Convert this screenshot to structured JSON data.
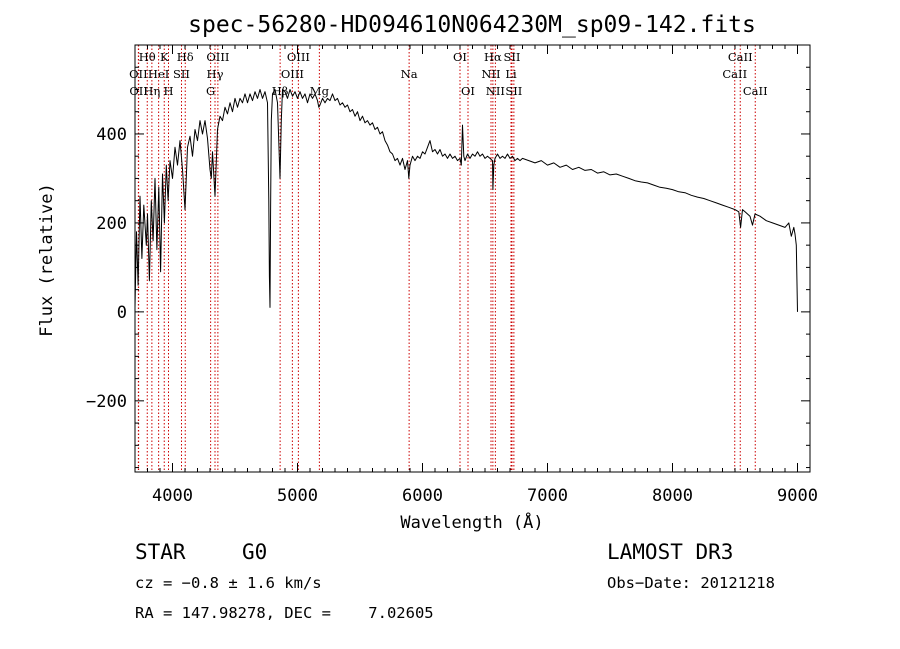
{
  "chart_data": {
    "type": "line",
    "title": "spec-56280-HD094610N064230M_sp09-142.fits",
    "xlabel": "Wavelength (Å)",
    "ylabel": "Flux (relative)",
    "xlim": [
      3700,
      9100
    ],
    "ylim": [
      -360,
      600
    ],
    "xticks": [
      4000,
      5000,
      6000,
      7000,
      8000,
      9000
    ],
    "xtick_labels": [
      "4000",
      "5000",
      "6000",
      "7000",
      "8000",
      "9000"
    ],
    "yticks": [
      -200,
      0,
      200,
      400
    ],
    "ytick_labels": [
      "−200",
      "0",
      "200",
      "400"
    ],
    "series": [
      {
        "name": "flux",
        "points": [
          [
            3700,
            10
          ],
          [
            3712,
            180
          ],
          [
            3725,
            60
          ],
          [
            3740,
            260
          ],
          [
            3755,
            120
          ],
          [
            3770,
            240
          ],
          [
            3790,
            150
          ],
          [
            3800,
            220
          ],
          [
            3815,
            70
          ],
          [
            3830,
            250
          ],
          [
            3845,
            160
          ],
          [
            3860,
            300
          ],
          [
            3875,
            140
          ],
          [
            3890,
            280
          ],
          [
            3905,
            90
          ],
          [
            3920,
            310
          ],
          [
            3935,
            200
          ],
          [
            3950,
            330
          ],
          [
            3965,
            250
          ],
          [
            3980,
            340
          ],
          [
            4000,
            300
          ],
          [
            4020,
            370
          ],
          [
            4040,
            330
          ],
          [
            4060,
            385
          ],
          [
            4080,
            320
          ],
          [
            4100,
            230
          ],
          [
            4120,
            370
          ],
          [
            4140,
            395
          ],
          [
            4160,
            350
          ],
          [
            4180,
            410
          ],
          [
            4200,
            385
          ],
          [
            4220,
            430
          ],
          [
            4240,
            400
          ],
          [
            4260,
            430
          ],
          [
            4280,
            390
          ],
          [
            4300,
            320
          ],
          [
            4310,
            300
          ],
          [
            4320,
            360
          ],
          [
            4340,
            260
          ],
          [
            4360,
            410
          ],
          [
            4380,
            440
          ],
          [
            4400,
            430
          ],
          [
            4420,
            460
          ],
          [
            4440,
            445
          ],
          [
            4460,
            470
          ],
          [
            4480,
            450
          ],
          [
            4500,
            480
          ],
          [
            4520,
            460
          ],
          [
            4540,
            480
          ],
          [
            4560,
            470
          ],
          [
            4580,
            490
          ],
          [
            4600,
            470
          ],
          [
            4620,
            490
          ],
          [
            4640,
            475
          ],
          [
            4660,
            495
          ],
          [
            4680,
            480
          ],
          [
            4700,
            500
          ],
          [
            4720,
            480
          ],
          [
            4740,
            495
          ],
          [
            4760,
            470
          ],
          [
            4770,
            250
          ],
          [
            4775,
            80
          ],
          [
            4780,
            10
          ],
          [
            4785,
            230
          ],
          [
            4790,
            430
          ],
          [
            4800,
            490
          ],
          [
            4820,
            500
          ],
          [
            4840,
            470
          ],
          [
            4860,
            300
          ],
          [
            4870,
            430
          ],
          [
            4880,
            500
          ],
          [
            4900,
            495
          ],
          [
            4920,
            480
          ],
          [
            4940,
            500
          ],
          [
            4960,
            485
          ],
          [
            4980,
            495
          ],
          [
            5000,
            480
          ],
          [
            5020,
            495
          ],
          [
            5040,
            480
          ],
          [
            5060,
            490
          ],
          [
            5080,
            470
          ],
          [
            5100,
            490
          ],
          [
            5120,
            480
          ],
          [
            5140,
            490
          ],
          [
            5160,
            475
          ],
          [
            5170,
            460
          ],
          [
            5180,
            465
          ],
          [
            5200,
            480
          ],
          [
            5220,
            470
          ],
          [
            5240,
            480
          ],
          [
            5260,
            475
          ],
          [
            5280,
            490
          ],
          [
            5300,
            475
          ],
          [
            5320,
            480
          ],
          [
            5340,
            465
          ],
          [
            5360,
            470
          ],
          [
            5380,
            460
          ],
          [
            5400,
            465
          ],
          [
            5420,
            450
          ],
          [
            5440,
            455
          ],
          [
            5460,
            440
          ],
          [
            5480,
            450
          ],
          [
            5500,
            430
          ],
          [
            5520,
            440
          ],
          [
            5540,
            425
          ],
          [
            5560,
            430
          ],
          [
            5580,
            420
          ],
          [
            5600,
            425
          ],
          [
            5620,
            410
          ],
          [
            5640,
            415
          ],
          [
            5660,
            400
          ],
          [
            5680,
            405
          ],
          [
            5700,
            385
          ],
          [
            5720,
            375
          ],
          [
            5740,
            360
          ],
          [
            5760,
            355
          ],
          [
            5780,
            340
          ],
          [
            5800,
            345
          ],
          [
            5820,
            330
          ],
          [
            5840,
            345
          ],
          [
            5860,
            320
          ],
          [
            5880,
            340
          ],
          [
            5890,
            300
          ],
          [
            5900,
            330
          ],
          [
            5920,
            350
          ],
          [
            5940,
            340
          ],
          [
            5960,
            350
          ],
          [
            5980,
            345
          ],
          [
            6000,
            360
          ],
          [
            6020,
            355
          ],
          [
            6040,
            370
          ],
          [
            6060,
            385
          ],
          [
            6080,
            360
          ],
          [
            6100,
            365
          ],
          [
            6120,
            355
          ],
          [
            6140,
            365
          ],
          [
            6160,
            350
          ],
          [
            6180,
            355
          ],
          [
            6200,
            345
          ],
          [
            6220,
            355
          ],
          [
            6240,
            345
          ],
          [
            6260,
            350
          ],
          [
            6280,
            340
          ],
          [
            6300,
            345
          ],
          [
            6310,
            330
          ],
          [
            6320,
            420
          ],
          [
            6330,
            350
          ],
          [
            6340,
            340
          ],
          [
            6360,
            355
          ],
          [
            6380,
            345
          ],
          [
            6400,
            355
          ],
          [
            6420,
            350
          ],
          [
            6440,
            360
          ],
          [
            6460,
            350
          ],
          [
            6480,
            355
          ],
          [
            6500,
            345
          ],
          [
            6520,
            350
          ],
          [
            6540,
            345
          ],
          [
            6560,
            340
          ],
          [
            6563,
            275
          ],
          [
            6570,
            330
          ],
          [
            6580,
            345
          ],
          [
            6600,
            355
          ],
          [
            6620,
            345
          ],
          [
            6640,
            350
          ],
          [
            6660,
            345
          ],
          [
            6680,
            355
          ],
          [
            6700,
            345
          ],
          [
            6720,
            350
          ],
          [
            6740,
            340
          ],
          [
            6760,
            345
          ],
          [
            6780,
            340
          ],
          [
            6800,
            345
          ],
          [
            6850,
            340
          ],
          [
            6900,
            335
          ],
          [
            6950,
            340
          ],
          [
            7000,
            330
          ],
          [
            7050,
            335
          ],
          [
            7100,
            325
          ],
          [
            7150,
            330
          ],
          [
            7200,
            320
          ],
          [
            7250,
            325
          ],
          [
            7300,
            318
          ],
          [
            7350,
            320
          ],
          [
            7400,
            312
          ],
          [
            7450,
            315
          ],
          [
            7500,
            308
          ],
          [
            7550,
            310
          ],
          [
            7600,
            305
          ],
          [
            7650,
            300
          ],
          [
            7700,
            295
          ],
          [
            7750,
            292
          ],
          [
            7800,
            290
          ],
          [
            7850,
            285
          ],
          [
            7900,
            280
          ],
          [
            7950,
            278
          ],
          [
            8000,
            275
          ],
          [
            8050,
            270
          ],
          [
            8100,
            268
          ],
          [
            8150,
            262
          ],
          [
            8200,
            258
          ],
          [
            8250,
            255
          ],
          [
            8300,
            250
          ],
          [
            8350,
            245
          ],
          [
            8400,
            240
          ],
          [
            8450,
            235
          ],
          [
            8500,
            230
          ],
          [
            8530,
            225
          ],
          [
            8545,
            190
          ],
          [
            8560,
            230
          ],
          [
            8580,
            225
          ],
          [
            8620,
            215
          ],
          [
            8640,
            195
          ],
          [
            8660,
            220
          ],
          [
            8700,
            215
          ],
          [
            8750,
            205
          ],
          [
            8800,
            200
          ],
          [
            8850,
            195
          ],
          [
            8900,
            190
          ],
          [
            8930,
            200
          ],
          [
            8950,
            170
          ],
          [
            8970,
            190
          ],
          [
            8980,
            175
          ],
          [
            8990,
            150
          ],
          [
            9000,
            0
          ]
        ]
      }
    ],
    "spectral_lines": [
      {
        "label": "Hθ",
        "wave": 3798,
        "row": 1,
        "dx": 0
      },
      {
        "label": "OII",
        "wave": 3727,
        "row": 2,
        "dx": 0
      },
      {
        "label": "OII",
        "wave": 3729,
        "row": 3,
        "dx": 0
      },
      {
        "label": "Hη",
        "wave": 3835,
        "row": 3,
        "dx": 0
      },
      {
        "label": "HeI",
        "wave": 3889,
        "row": 2,
        "dx": 0
      },
      {
        "label": "K",
        "wave": 3934,
        "row": 1,
        "dx": 0
      },
      {
        "label": "H",
        "wave": 3968,
        "row": 3,
        "dx": 0
      },
      {
        "label": "SII",
        "wave": 4072,
        "row": 2,
        "dx": 0
      },
      {
        "label": "Hδ",
        "wave": 4102,
        "row": 1,
        "dx": 0
      },
      {
        "label": "OIII",
        "wave": 4363,
        "row": 1,
        "dx": 0
      },
      {
        "label": "Hγ",
        "wave": 4340,
        "row": 2,
        "dx": 0
      },
      {
        "label": "G",
        "wave": 4305,
        "row": 3,
        "dx": 0
      },
      {
        "label": "OIII",
        "wave": 5007,
        "row": 1,
        "dx": 0
      },
      {
        "label": "OIII",
        "wave": 4959,
        "row": 2,
        "dx": 0
      },
      {
        "label": "Hβ",
        "wave": 4861,
        "row": 3,
        "dx": 0
      },
      {
        "label": "Mg",
        "wave": 5175,
        "row": 3,
        "dx": 0
      },
      {
        "label": "Na",
        "wave": 5893,
        "row": 2,
        "dx": 0
      },
      {
        "label": "OI",
        "wave": 6300,
        "row": 1,
        "dx": 0
      },
      {
        "label": "OI",
        "wave": 6364,
        "row": 3,
        "dx": 0
      },
      {
        "label": "Hα",
        "wave": 6563,
        "row": 1,
        "dx": 0
      },
      {
        "label": "NII",
        "wave": 6548,
        "row": 2,
        "dx": 0
      },
      {
        "label": "NII",
        "wave": 6583,
        "row": 3,
        "dx": 0
      },
      {
        "label": "SII",
        "wave": 6716,
        "row": 1,
        "dx": 0
      },
      {
        "label": "Li",
        "wave": 6708,
        "row": 2,
        "dx": 0
      },
      {
        "label": "SII",
        "wave": 6731,
        "row": 3,
        "dx": 0
      },
      {
        "label": "CaII",
        "wave": 8542,
        "row": 1,
        "dx": 0
      },
      {
        "label": "CaII",
        "wave": 8498,
        "row": 2,
        "dx": 0
      },
      {
        "label": "CaII",
        "wave": 8662,
        "row": 3,
        "dx": 0
      }
    ],
    "line_color": "#cc0000",
    "data_color": "#000000"
  },
  "info": {
    "class_label": "STAR",
    "subclass": "G0",
    "survey": "LAMOST DR3",
    "redshift": "cz = −0.8 ± 1.6 km/s",
    "obs_date": "Obs−Date: 20121218",
    "coords": "RA = 147.98278, DEC =    7.02605"
  }
}
